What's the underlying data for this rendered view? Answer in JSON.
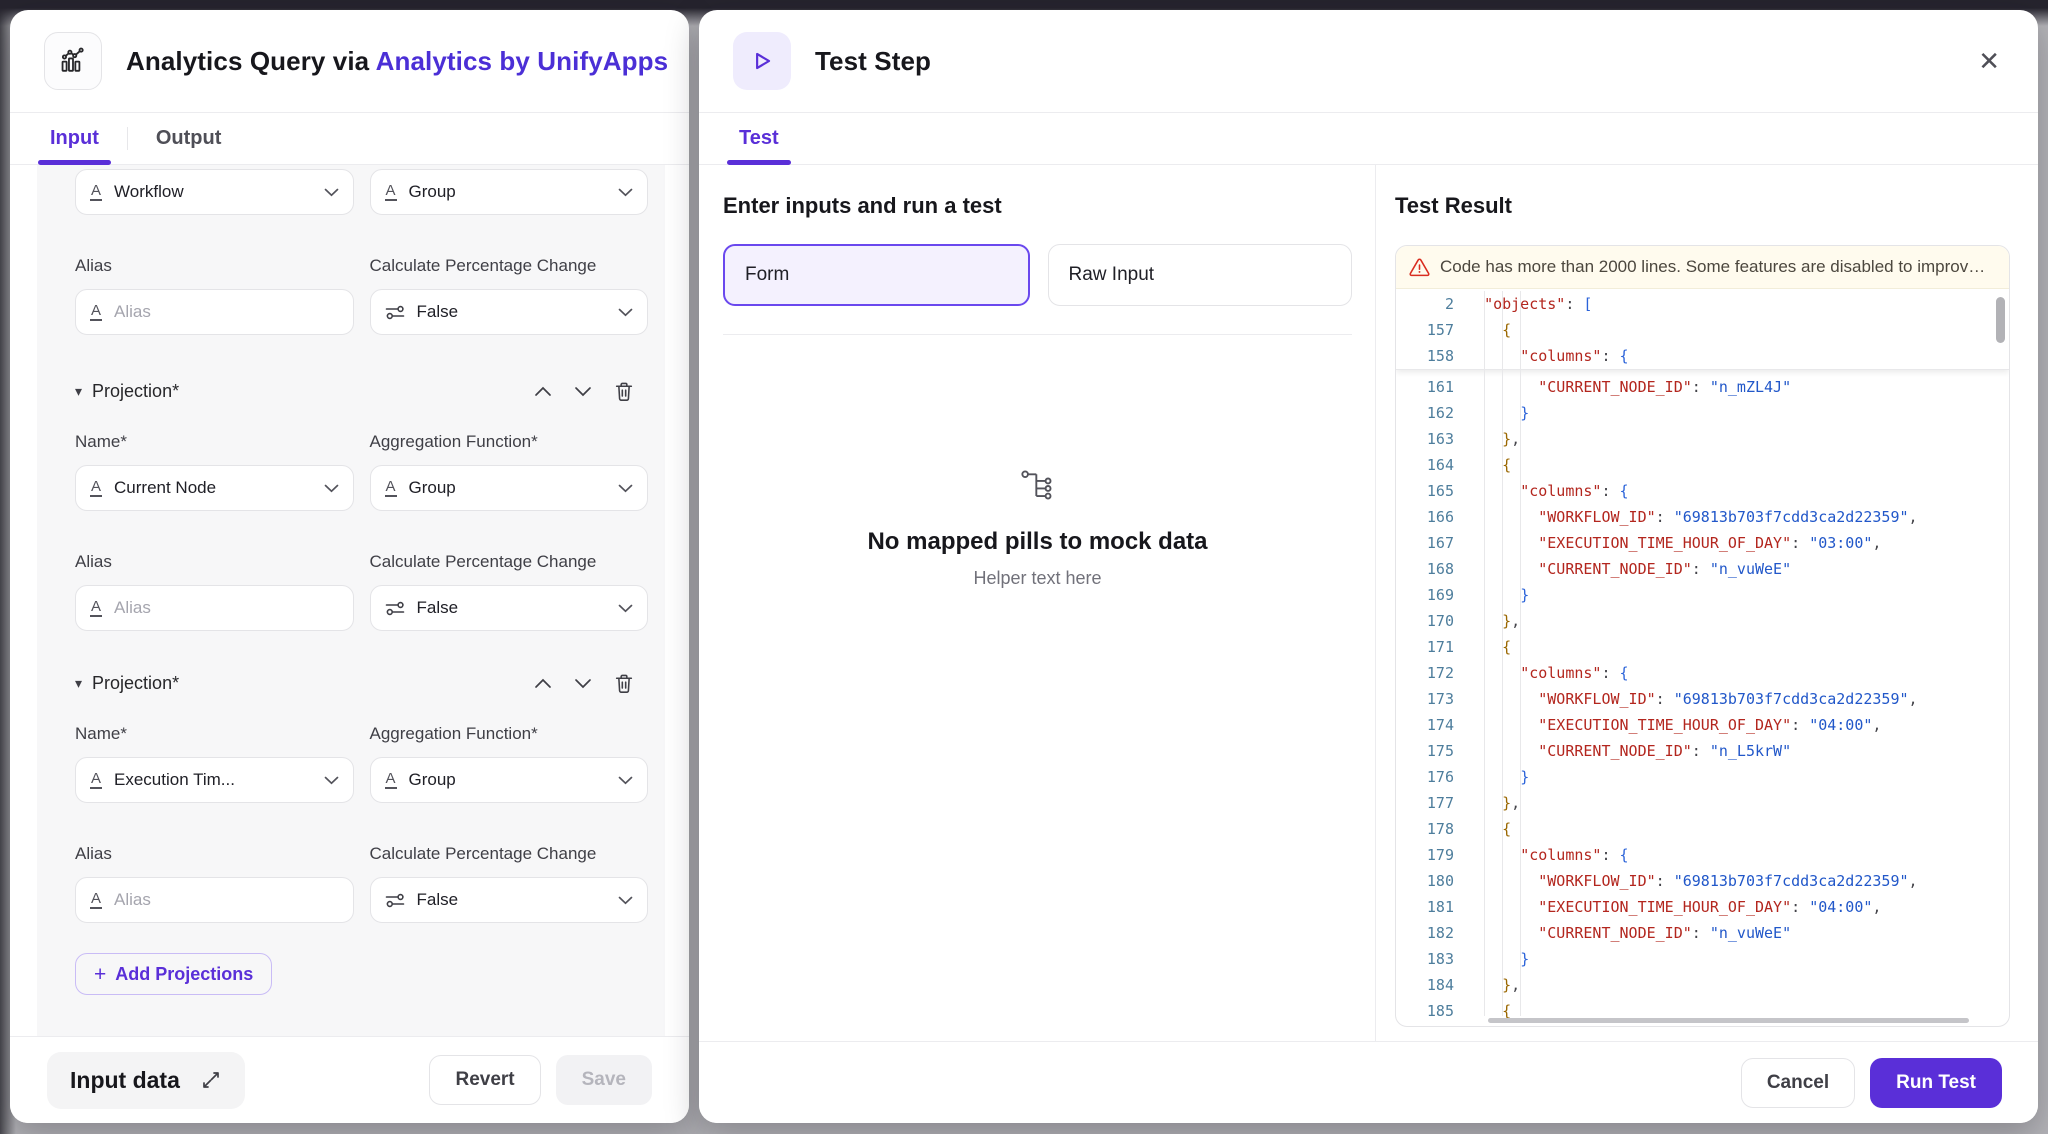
{
  "colors": {
    "accent": "#5a2fd8",
    "brand_text": "#4b2fd6",
    "warning_bg": "#fffbee",
    "warning_icon": "#d92d20",
    "code_line_number": "#4d7d9c",
    "code_key": "#b3261e",
    "code_string": "#2157c9",
    "code_brace_gold": "#9a6700",
    "code_brace_blue": "#2b63d9"
  },
  "icons": {
    "close": "✕",
    "caret_down": "▾",
    "plus": "+",
    "text_type": "A"
  },
  "left_panel": {
    "header": {
      "title_prefix": "Analytics Query via ",
      "title_brand": "Analytics by UnifyApps"
    },
    "tabs": {
      "input": "Input",
      "output": "Output"
    },
    "form": {
      "top_left_value": "Workflow",
      "top_right_value": "Group",
      "alias_label": "Alias",
      "alias_placeholder": "Alias",
      "calc_label": "Calculate Percentage Change",
      "calc_value": "False",
      "projection_label": "Projection*",
      "name_label": "Name*",
      "agg_label": "Aggregation Function*",
      "proj1": {
        "name_value": "Current Node",
        "agg_value": "Group"
      },
      "proj2": {
        "name_value": "Execution Tim...",
        "agg_value": "Group"
      },
      "add_button": "Add Projections"
    },
    "footer": {
      "input_data": "Input data",
      "revert": "Revert",
      "save": "Save"
    }
  },
  "right_panel": {
    "header": {
      "title": "Test Step"
    },
    "tabs": {
      "test": "Test"
    },
    "input_section": {
      "heading": "Enter inputs and run a test",
      "form_button": "Form",
      "raw_button": "Raw Input",
      "empty_title": "No mapped pills to mock data",
      "empty_helper": "Helper text here"
    },
    "result_section": {
      "heading": "Test Result",
      "warning": "Code has more than 2000 lines. Some features are disabled to improv…",
      "sticky": [
        {
          "n": 2,
          "t": [
            [
              "pln",
              "  "
            ],
            [
              "key",
              "\"objects\""
            ],
            [
              "pun",
              ": "
            ],
            [
              "bb",
              "["
            ]
          ]
        },
        {
          "n": 157,
          "t": [
            [
              "pln",
              "    "
            ],
            [
              "bg",
              "{"
            ]
          ]
        },
        {
          "n": 158,
          "t": [
            [
              "pln",
              "      "
            ],
            [
              "key",
              "\"columns\""
            ],
            [
              "pun",
              ": "
            ],
            [
              "bb",
              "{"
            ]
          ]
        }
      ],
      "lines": [
        {
          "n": 161,
          "t": [
            [
              "pln",
              "        "
            ],
            [
              "key",
              "\"CURRENT_NODE_ID\""
            ],
            [
              "pun",
              ": "
            ],
            [
              "str",
              "\"n_mZL4J\""
            ]
          ]
        },
        {
          "n": 162,
          "t": [
            [
              "pln",
              "      "
            ],
            [
              "bb",
              "}"
            ]
          ]
        },
        {
          "n": 163,
          "t": [
            [
              "pln",
              "    "
            ],
            [
              "bg",
              "}"
            ],
            [
              "pun",
              ","
            ]
          ]
        },
        {
          "n": 164,
          "t": [
            [
              "pln",
              "    "
            ],
            [
              "bg",
              "{"
            ]
          ]
        },
        {
          "n": 165,
          "t": [
            [
              "pln",
              "      "
            ],
            [
              "key",
              "\"columns\""
            ],
            [
              "pun",
              ": "
            ],
            [
              "bb",
              "{"
            ]
          ]
        },
        {
          "n": 166,
          "t": [
            [
              "pln",
              "        "
            ],
            [
              "key",
              "\"WORKFLOW_ID\""
            ],
            [
              "pun",
              ": "
            ],
            [
              "str",
              "\"69813b703f7cdd3ca2d22359\""
            ],
            [
              "pun",
              ","
            ]
          ]
        },
        {
          "n": 167,
          "t": [
            [
              "pln",
              "        "
            ],
            [
              "key",
              "\"EXECUTION_TIME_HOUR_OF_DAY\""
            ],
            [
              "pun",
              ": "
            ],
            [
              "str",
              "\"03:00\""
            ],
            [
              "pun",
              ","
            ]
          ]
        },
        {
          "n": 168,
          "t": [
            [
              "pln",
              "        "
            ],
            [
              "key",
              "\"CURRENT_NODE_ID\""
            ],
            [
              "pun",
              ": "
            ],
            [
              "str",
              "\"n_vuWeE\""
            ]
          ]
        },
        {
          "n": 169,
          "t": [
            [
              "pln",
              "      "
            ],
            [
              "bb",
              "}"
            ]
          ]
        },
        {
          "n": 170,
          "t": [
            [
              "pln",
              "    "
            ],
            [
              "bg",
              "}"
            ],
            [
              "pun",
              ","
            ]
          ]
        },
        {
          "n": 171,
          "t": [
            [
              "pln",
              "    "
            ],
            [
              "bg",
              "{"
            ]
          ]
        },
        {
          "n": 172,
          "t": [
            [
              "pln",
              "      "
            ],
            [
              "key",
              "\"columns\""
            ],
            [
              "pun",
              ": "
            ],
            [
              "bb",
              "{"
            ]
          ]
        },
        {
          "n": 173,
          "t": [
            [
              "pln",
              "        "
            ],
            [
              "key",
              "\"WORKFLOW_ID\""
            ],
            [
              "pun",
              ": "
            ],
            [
              "str",
              "\"69813b703f7cdd3ca2d22359\""
            ],
            [
              "pun",
              ","
            ]
          ]
        },
        {
          "n": 174,
          "t": [
            [
              "pln",
              "        "
            ],
            [
              "key",
              "\"EXECUTION_TIME_HOUR_OF_DAY\""
            ],
            [
              "pun",
              ": "
            ],
            [
              "str",
              "\"04:00\""
            ],
            [
              "pun",
              ","
            ]
          ]
        },
        {
          "n": 175,
          "t": [
            [
              "pln",
              "        "
            ],
            [
              "key",
              "\"CURRENT_NODE_ID\""
            ],
            [
              "pun",
              ": "
            ],
            [
              "str",
              "\"n_L5krW\""
            ]
          ]
        },
        {
          "n": 176,
          "t": [
            [
              "pln",
              "      "
            ],
            [
              "bb",
              "}"
            ]
          ]
        },
        {
          "n": 177,
          "t": [
            [
              "pln",
              "    "
            ],
            [
              "bg",
              "}"
            ],
            [
              "pun",
              ","
            ]
          ]
        },
        {
          "n": 178,
          "t": [
            [
              "pln",
              "    "
            ],
            [
              "bg",
              "{"
            ]
          ]
        },
        {
          "n": 179,
          "t": [
            [
              "pln",
              "      "
            ],
            [
              "key",
              "\"columns\""
            ],
            [
              "pun",
              ": "
            ],
            [
              "bb",
              "{"
            ]
          ]
        },
        {
          "n": 180,
          "t": [
            [
              "pln",
              "        "
            ],
            [
              "key",
              "\"WORKFLOW_ID\""
            ],
            [
              "pun",
              ": "
            ],
            [
              "str",
              "\"69813b703f7cdd3ca2d22359\""
            ],
            [
              "pun",
              ","
            ]
          ]
        },
        {
          "n": 181,
          "t": [
            [
              "pln",
              "        "
            ],
            [
              "key",
              "\"EXECUTION_TIME_HOUR_OF_DAY\""
            ],
            [
              "pun",
              ": "
            ],
            [
              "str",
              "\"04:00\""
            ],
            [
              "pun",
              ","
            ]
          ]
        },
        {
          "n": 182,
          "t": [
            [
              "pln",
              "        "
            ],
            [
              "key",
              "\"CURRENT_NODE_ID\""
            ],
            [
              "pun",
              ": "
            ],
            [
              "str",
              "\"n_vuWeE\""
            ]
          ]
        },
        {
          "n": 183,
          "t": [
            [
              "pln",
              "      "
            ],
            [
              "bb",
              "}"
            ]
          ]
        },
        {
          "n": 184,
          "t": [
            [
              "pln",
              "    "
            ],
            [
              "bg",
              "}"
            ],
            [
              "pun",
              ","
            ]
          ]
        },
        {
          "n": 185,
          "t": [
            [
              "pln",
              "    "
            ],
            [
              "bg",
              "{"
            ]
          ]
        }
      ]
    },
    "footer": {
      "cancel": "Cancel",
      "run": "Run Test"
    }
  }
}
